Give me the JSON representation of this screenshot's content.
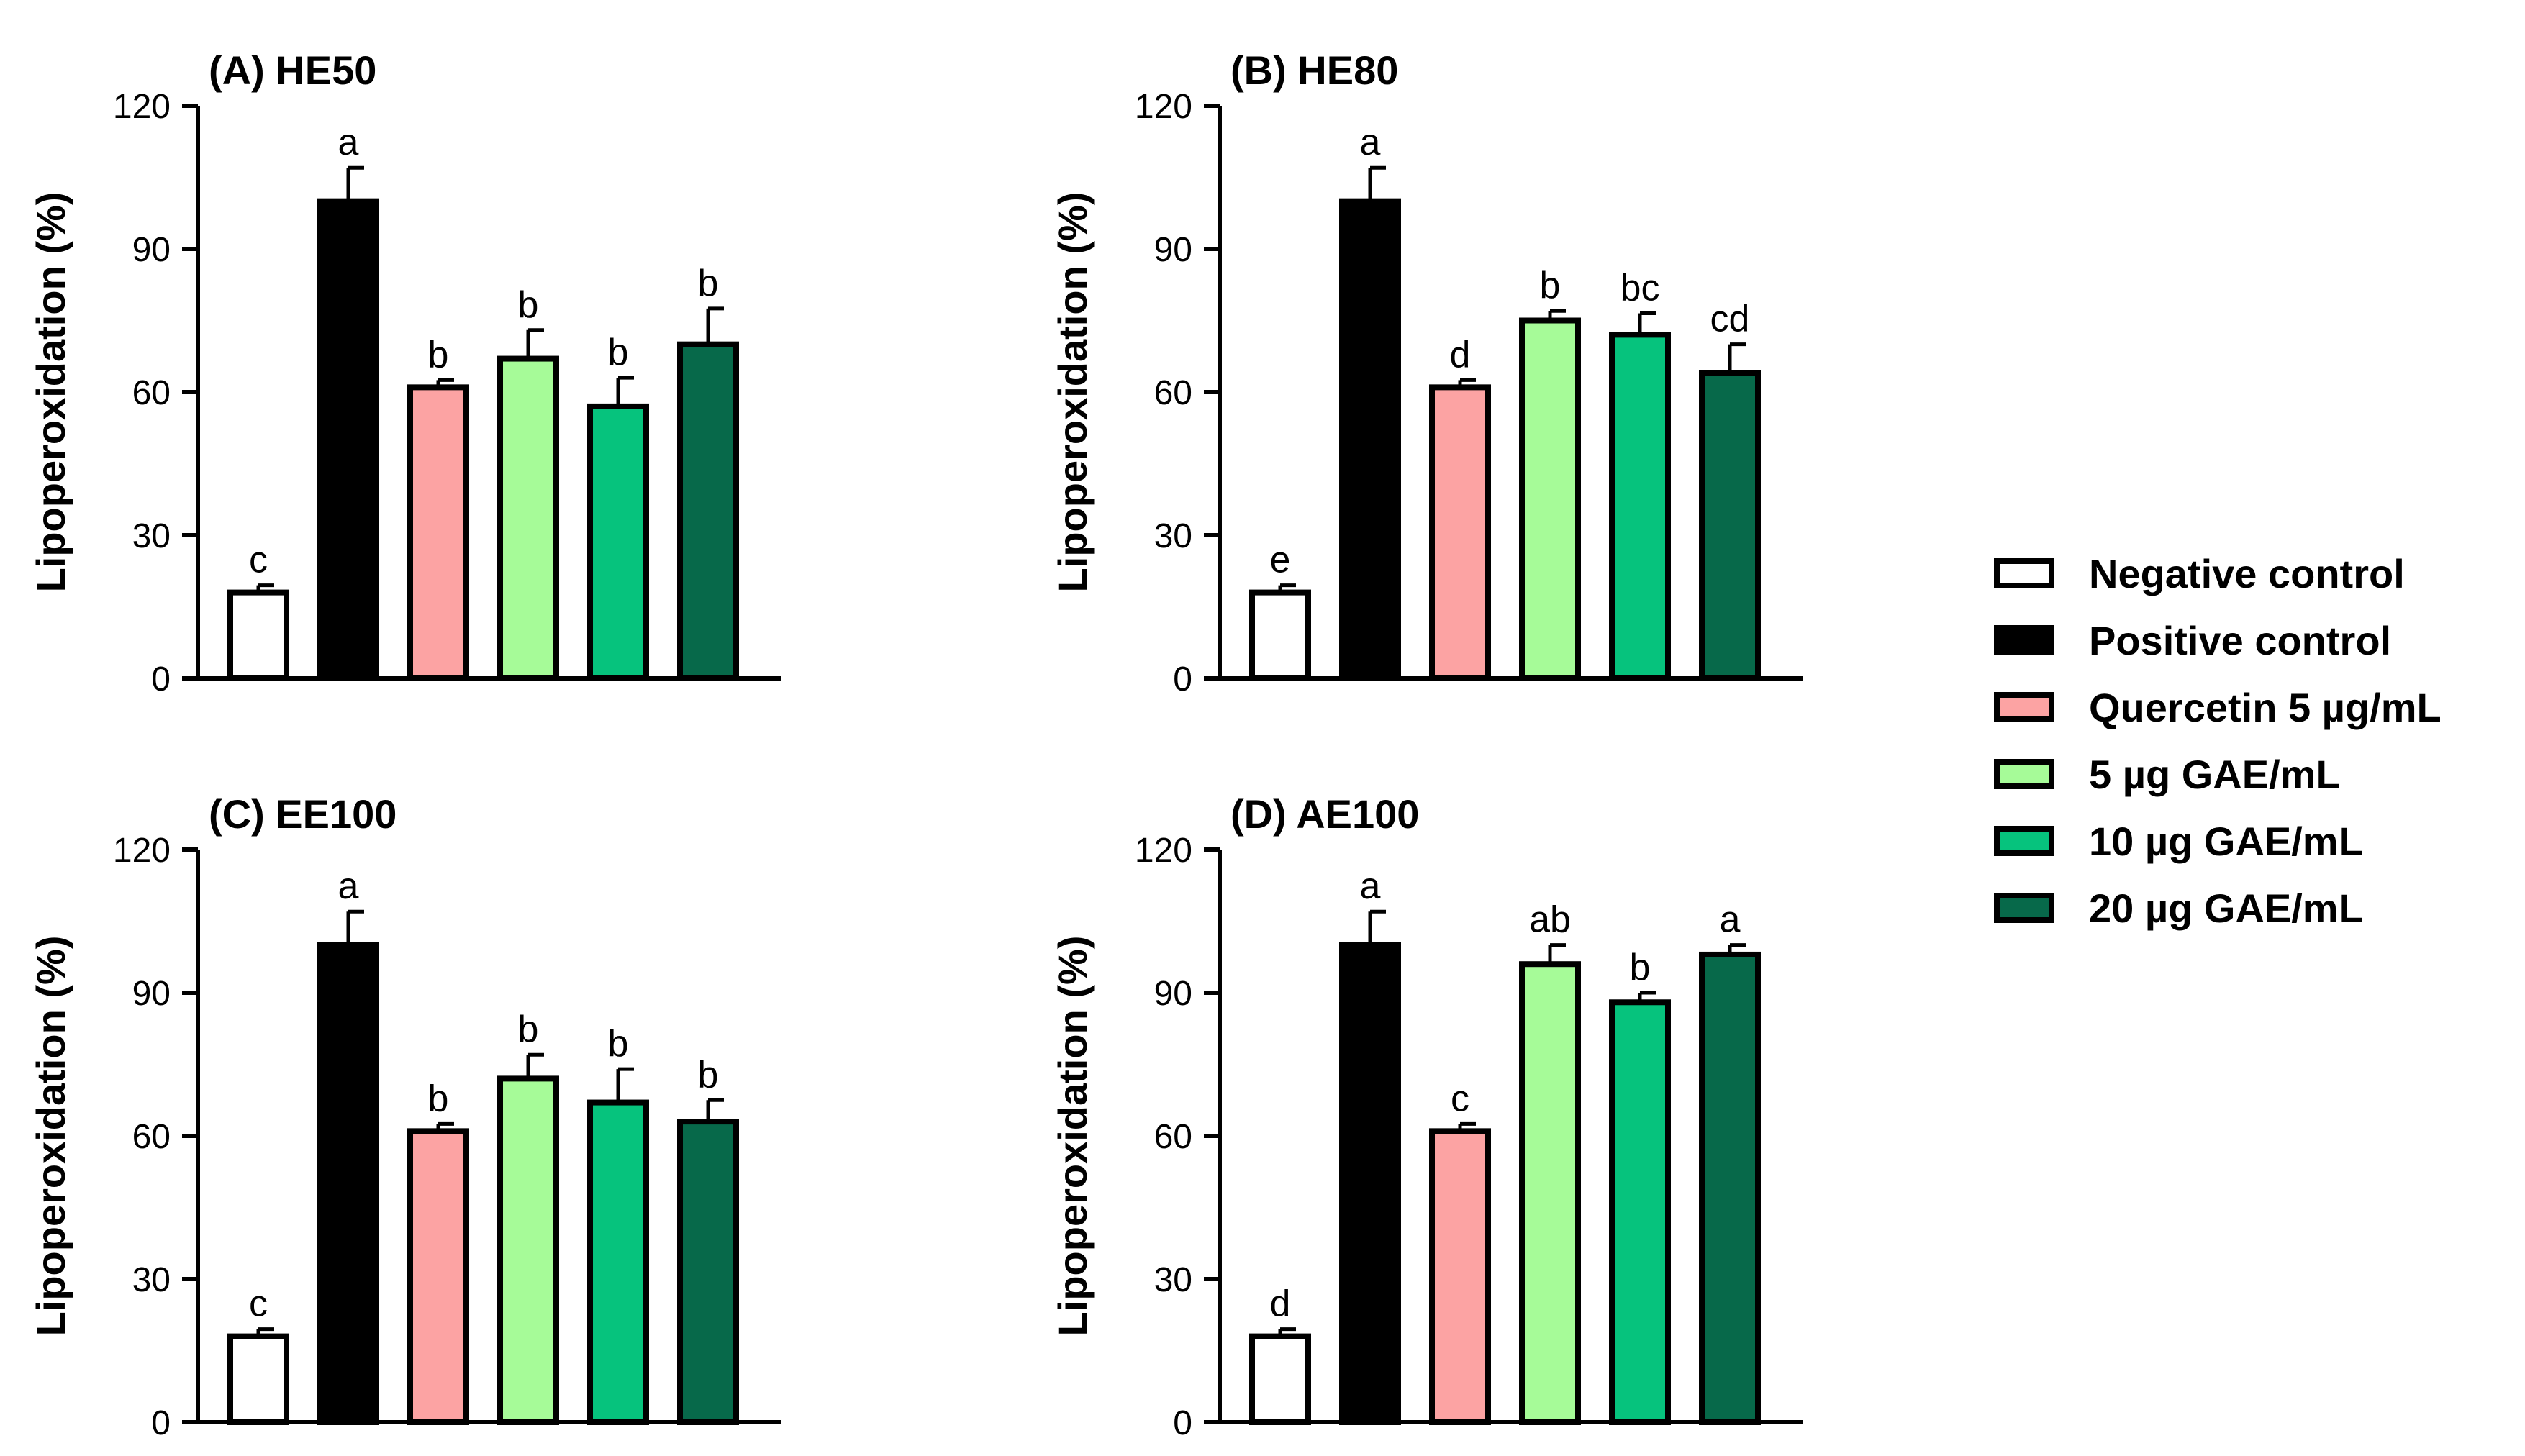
{
  "legend": [
    {
      "label": "Negative control",
      "color": "#ffffff"
    },
    {
      "label": "Positive control",
      "color": "#000000"
    },
    {
      "label": "Quercetin 5 µg/mL",
      "color": "#fca3a3"
    },
    {
      "label": "5 µg GAE/mL",
      "color": "#a6fb98"
    },
    {
      "label": "10 µg GAE/mL",
      "color": "#06c37d"
    },
    {
      "label": "20 µg GAE/mL",
      "color": "#07694a"
    }
  ],
  "chart_data": [
    {
      "type": "bar",
      "title": "(A) HE50",
      "ylabel": "Lipoperoxidation (%)",
      "xlabel": "",
      "ylim": [
        0,
        120
      ],
      "yticks": [
        0,
        30,
        60,
        90,
        120
      ],
      "categories": [
        "Negative control",
        "Positive control",
        "Quercetin 5 µg/mL",
        "5 µg GAE/mL",
        "10 µg GAE/mL",
        "20 µg GAE/mL"
      ],
      "values": [
        18,
        100,
        61,
        67,
        57,
        70
      ],
      "errors": [
        1.5,
        7,
        1.5,
        6,
        6,
        7.5
      ],
      "significance": [
        "c",
        "a",
        "b",
        "b",
        "b",
        "b"
      ]
    },
    {
      "type": "bar",
      "title": "(B) HE80",
      "ylabel": "Lipoperoxidation (%)",
      "xlabel": "",
      "ylim": [
        0,
        120
      ],
      "yticks": [
        0,
        30,
        60,
        90,
        120
      ],
      "categories": [
        "Negative control",
        "Positive control",
        "Quercetin 5 µg/mL",
        "5 µg GAE/mL",
        "10 µg GAE/mL",
        "20 µg GAE/mL"
      ],
      "values": [
        18,
        100,
        61,
        75,
        72,
        64
      ],
      "errors": [
        1.5,
        7,
        1.5,
        2,
        4.5,
        6
      ],
      "significance": [
        "e",
        "a",
        "d",
        "b",
        "bc",
        "cd"
      ]
    },
    {
      "type": "bar",
      "title": "(C) EE100",
      "ylabel": "Lipoperoxidation (%)",
      "xlabel": "",
      "ylim": [
        0,
        120
      ],
      "yticks": [
        0,
        30,
        60,
        90,
        120
      ],
      "categories": [
        "Negative control",
        "Positive control",
        "Quercetin 5 µg/mL",
        "5 µg GAE/mL",
        "10 µg GAE/mL",
        "20 µg GAE/mL"
      ],
      "values": [
        18,
        100,
        61,
        72,
        67,
        63
      ],
      "errors": [
        1.5,
        7,
        1.5,
        5,
        7,
        4.5
      ],
      "significance": [
        "c",
        "a",
        "b",
        "b",
        "b",
        "b"
      ]
    },
    {
      "type": "bar",
      "title": "(D) AE100",
      "ylabel": "Lipoperoxidation (%)",
      "xlabel": "",
      "ylim": [
        0,
        120
      ],
      "yticks": [
        0,
        30,
        60,
        90,
        120
      ],
      "categories": [
        "Negative control",
        "Positive control",
        "Quercetin 5 µg/mL",
        "5 µg GAE/mL",
        "10 µg GAE/mL",
        "20 µg GAE/mL"
      ],
      "values": [
        18,
        100,
        61,
        96,
        88,
        98
      ],
      "errors": [
        1.5,
        7,
        1.5,
        4,
        2,
        2
      ],
      "significance": [
        "d",
        "a",
        "c",
        "ab",
        "b",
        "a"
      ]
    }
  ]
}
